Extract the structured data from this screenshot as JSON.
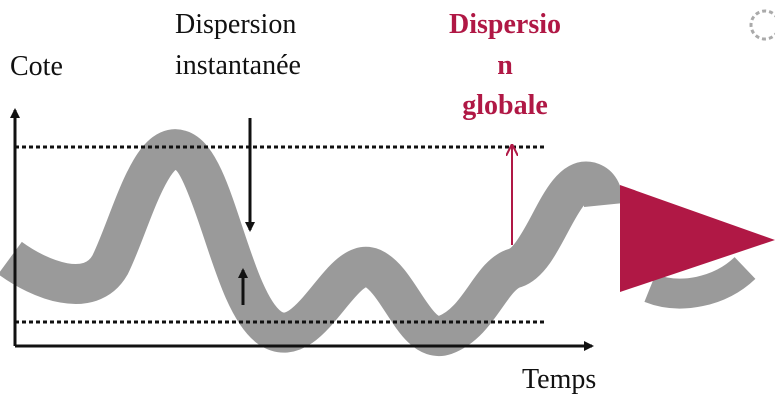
{
  "labels": {
    "y_axis": "Cote",
    "x_axis": "Temps",
    "instant": [
      "Dispersion",
      "instantanée"
    ],
    "global": [
      "Dispersio",
      "n",
      "globale"
    ]
  }
}
